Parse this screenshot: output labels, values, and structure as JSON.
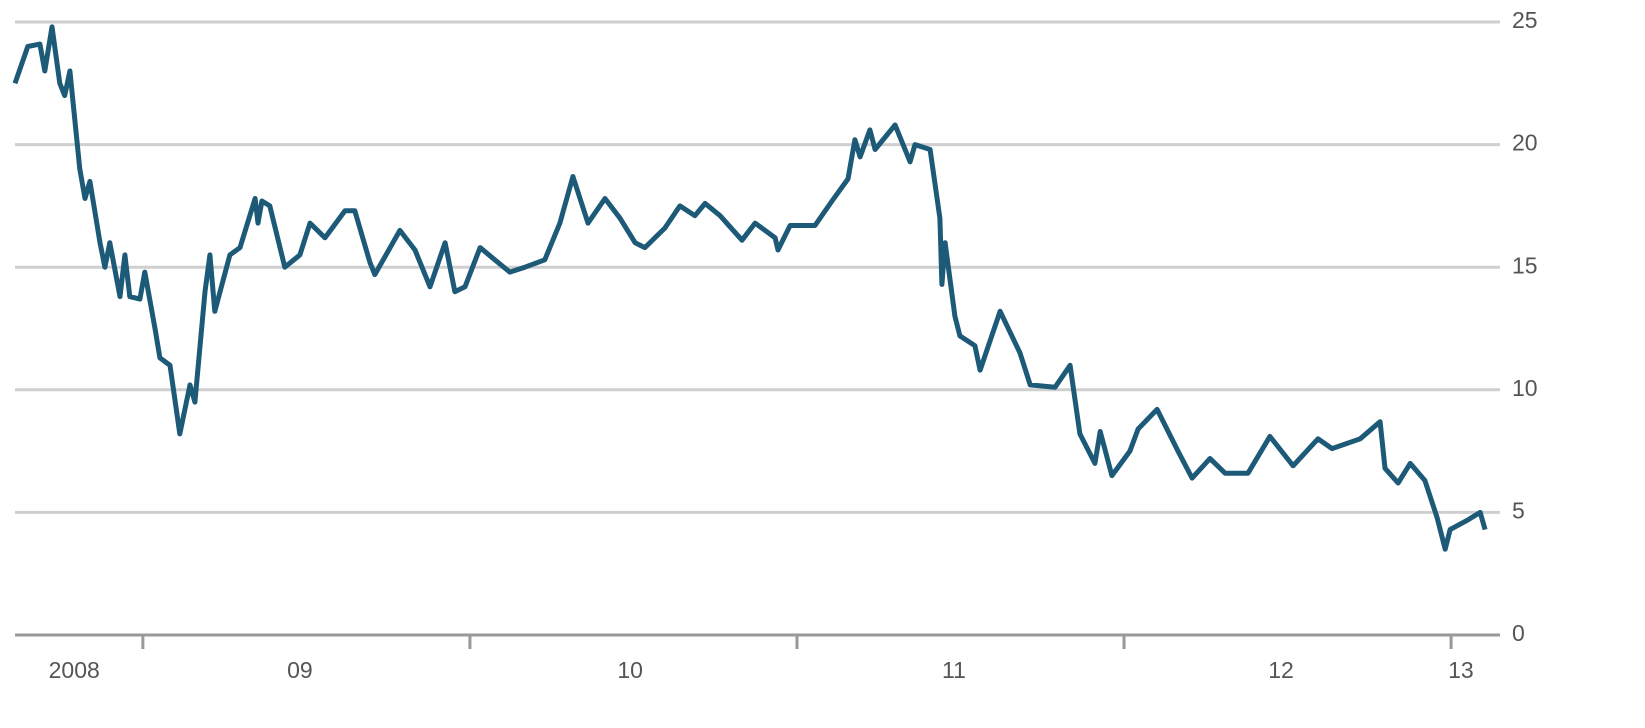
{
  "chart_data": {
    "type": "line",
    "x": [
      2008.609,
      2008.648,
      2008.685,
      2008.7,
      2008.722,
      2008.746,
      2008.761,
      2008.777,
      2008.807,
      2008.823,
      2008.838,
      2008.869,
      2008.884,
      2008.899,
      2008.93,
      2008.945,
      2008.96,
      2008.991,
      2009.006,
      2009.037,
      2009.052,
      2009.083,
      2009.113,
      2009.144,
      2009.159,
      2009.19,
      2009.205,
      2009.22,
      2009.266,
      2009.297,
      2009.343,
      2009.352,
      2009.364,
      2009.388,
      2009.434,
      2009.48,
      2009.511,
      2009.557,
      2009.618,
      2009.648,
      2009.694,
      2009.709,
      2009.786,
      2009.832,
      2009.878,
      2009.924,
      2009.954,
      2009.985,
      2010.031,
      2010.076,
      2010.122,
      2010.168,
      2010.229,
      2010.275,
      2010.315,
      2010.361,
      2010.413,
      2010.459,
      2010.505,
      2010.535,
      2010.596,
      2010.642,
      2010.688,
      2010.719,
      2010.765,
      2010.832,
      2010.872,
      2010.933,
      2010.942,
      2010.979,
      2011.055,
      2011.107,
      2011.156,
      2011.177,
      2011.193,
      2011.223,
      2011.239,
      2011.3,
      2011.346,
      2011.361,
      2011.407,
      2011.437,
      2011.443,
      2011.453,
      2011.483,
      2011.498,
      2011.544,
      2011.56,
      2011.621,
      2011.682,
      2011.713,
      2011.789,
      2011.835,
      2011.865,
      2011.911,
      2011.927,
      2011.963,
      2012.018,
      2012.043,
      2012.101,
      2012.165,
      2012.208,
      2012.263,
      2012.309,
      2012.379,
      2012.446,
      2012.517,
      2012.593,
      2012.636,
      2012.722,
      2012.783,
      2012.798,
      2012.838,
      2012.875,
      2012.92,
      2012.957,
      2012.982,
      2012.997,
      2013.052,
      2013.089,
      2013.104
    ],
    "series": [
      {
        "color": "#1d5a78",
        "values": [
          22.5,
          24,
          24.1,
          23,
          24.8,
          22.5,
          22,
          23,
          19,
          17.8,
          18.5,
          16,
          15,
          16,
          13.8,
          15.5,
          13.8,
          13.7,
          14.8,
          12.5,
          11.3,
          11,
          8.2,
          10.2,
          9.5,
          14,
          15.5,
          13.2,
          15.5,
          15.8,
          17.8,
          16.8,
          17.7,
          17.5,
          15,
          15.5,
          16.8,
          16.2,
          17.3,
          17.3,
          15.2,
          14.7,
          16.5,
          15.7,
          14.2,
          16,
          14,
          14.2,
          15.8,
          15.3,
          14.8,
          15,
          15.3,
          16.8,
          18.7,
          16.8,
          17.8,
          17,
          16,
          15.8,
          16.6,
          17.5,
          17.1,
          17.6,
          17.1,
          16.1,
          16.8,
          16.2,
          15.7,
          16.7,
          16.7,
          17.7,
          18.6,
          20.2,
          19.5,
          20.6,
          19.8,
          20.8,
          19.3,
          20,
          19.8,
          17,
          14.3,
          16,
          13,
          12.2,
          11.8,
          10.8,
          13.2,
          11.5,
          10.2,
          10.1,
          11,
          8.2,
          7,
          8.3,
          6.5,
          7.5,
          8.4,
          9.2,
          7.5,
          6.4,
          7.2,
          6.6,
          6.6,
          8.1,
          6.9,
          8,
          7.6,
          8,
          8.7,
          6.8,
          6.2,
          7,
          6.3,
          4.8,
          3.5,
          4.3,
          4.7,
          5,
          4.3
        ]
      }
    ],
    "xlim": [
      2008.609,
      2013.119
    ],
    "xticks": [
      {
        "value": 2008.79,
        "label": "2008"
      },
      {
        "value": 2009.48,
        "label": "09"
      },
      {
        "value": 2010.49,
        "label": "10"
      },
      {
        "value": 2011.48,
        "label": "11"
      },
      {
        "value": 2012.48,
        "label": "12"
      },
      {
        "value": 2013.03,
        "label": "13"
      }
    ],
    "xtick_marks": [
      2009,
      2010,
      2011,
      2012,
      2013
    ],
    "ylim": [
      0,
      25
    ],
    "yticks": [
      0,
      5,
      10,
      15,
      20,
      25
    ],
    "grid": true
  }
}
